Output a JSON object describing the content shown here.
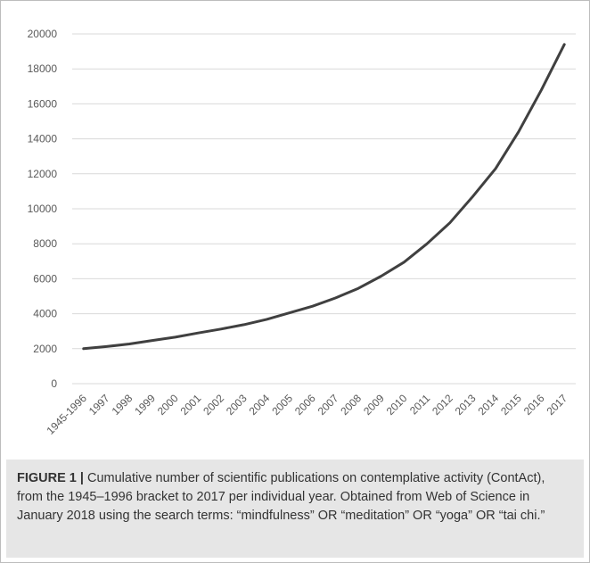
{
  "chart_data": {
    "type": "line",
    "title": "",
    "xlabel": "",
    "ylabel": "",
    "categories": [
      "1945-1996",
      "1997",
      "1998",
      "1999",
      "2000",
      "2001",
      "2002",
      "2003",
      "2004",
      "2005",
      "2006",
      "2007",
      "2008",
      "2009",
      "2010",
      "2011",
      "2012",
      "2013",
      "2014",
      "2015",
      "2016",
      "2017"
    ],
    "series": [
      {
        "values": [
          2000,
          2120,
          2270,
          2470,
          2660,
          2900,
          3120,
          3370,
          3680,
          4050,
          4430,
          4900,
          5450,
          6150,
          6950,
          8000,
          9200,
          10700,
          12300,
          14400,
          16800,
          19400
        ]
      }
    ],
    "ylim": [
      0,
      20000
    ],
    "yticks": [
      0,
      2000,
      4000,
      6000,
      8000,
      10000,
      12000,
      14000,
      16000,
      18000,
      20000
    ],
    "grid": true,
    "legend": "none",
    "line_color": "#404040",
    "grid_color": "#d9d9d9"
  },
  "caption": {
    "label": "FIGURE 1 |",
    "text": " Cumulative number of scientific publications on contemplative activity (ContAct), from the 1945–1996 bracket to 2017 per individual year. Obtained from Web of Science in January 2018 using the search terms: “mindfulness” OR “meditation” OR “yoga” OR “tai chi.”"
  }
}
